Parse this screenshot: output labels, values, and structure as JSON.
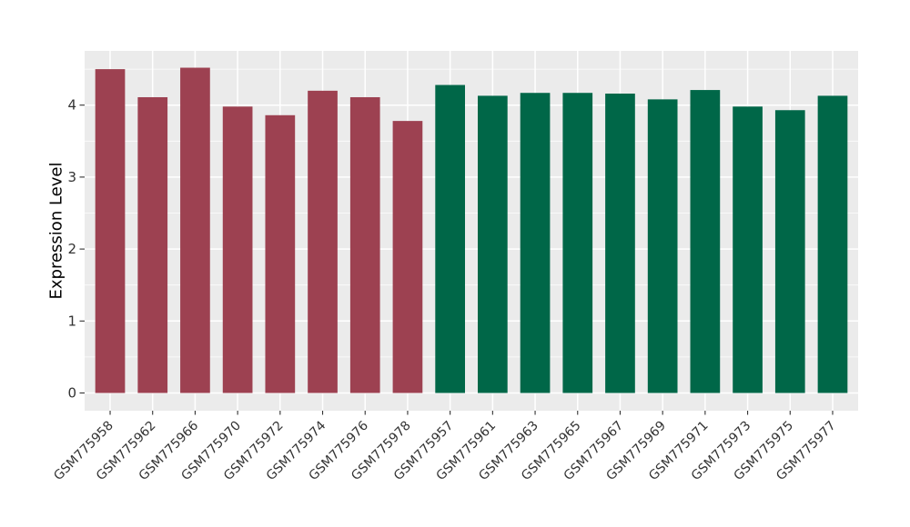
{
  "chart_data": {
    "type": "bar",
    "title": "",
    "xlabel": "",
    "ylabel": "Expression Level",
    "yticks": [
      0,
      1,
      2,
      3,
      4
    ],
    "yticks_minor": [
      0.5,
      1.5,
      2.5,
      3.5,
      4.5
    ],
    "ylim": [
      -0.25,
      4.75
    ],
    "grid": "major and minor horizontal white lines, vertical white line at each category center, on grey panel",
    "legend_position": "none",
    "x_tick_rotation": 45,
    "bar_relative_width": 0.7,
    "groups": [
      {
        "name": "group-1",
        "color": "#9d4151"
      },
      {
        "name": "group-2",
        "color": "#006748"
      }
    ],
    "bars": [
      {
        "label": "GSM775958",
        "value": 4.5,
        "group": 0
      },
      {
        "label": "GSM775962",
        "value": 4.11,
        "group": 0
      },
      {
        "label": "GSM775966",
        "value": 4.52,
        "group": 0
      },
      {
        "label": "GSM775970",
        "value": 3.98,
        "group": 0
      },
      {
        "label": "GSM775972",
        "value": 3.86,
        "group": 0
      },
      {
        "label": "GSM775974",
        "value": 4.2,
        "group": 0
      },
      {
        "label": "GSM775976",
        "value": 4.11,
        "group": 0
      },
      {
        "label": "GSM775978",
        "value": 3.78,
        "group": 0
      },
      {
        "label": "GSM775957",
        "value": 4.28,
        "group": 1
      },
      {
        "label": "GSM775961",
        "value": 4.13,
        "group": 1
      },
      {
        "label": "GSM775963",
        "value": 4.17,
        "group": 1
      },
      {
        "label": "GSM775965",
        "value": 4.17,
        "group": 1
      },
      {
        "label": "GSM775967",
        "value": 4.16,
        "group": 1
      },
      {
        "label": "GSM775969",
        "value": 4.08,
        "group": 1
      },
      {
        "label": "GSM775971",
        "value": 4.21,
        "group": 1
      },
      {
        "label": "GSM775973",
        "value": 3.98,
        "group": 1
      },
      {
        "label": "GSM775975",
        "value": 3.93,
        "group": 1
      },
      {
        "label": "GSM775977",
        "value": 4.13,
        "group": 1
      }
    ]
  },
  "style": {
    "figure_bg": "#ffffff",
    "panel_bg": "#ebebeb",
    "grid_major": "#ffffff",
    "grid_minor": "#ffffff",
    "tick_color": "#333333",
    "tick_label_color": "#333333",
    "axis_title_color": "#000000"
  }
}
